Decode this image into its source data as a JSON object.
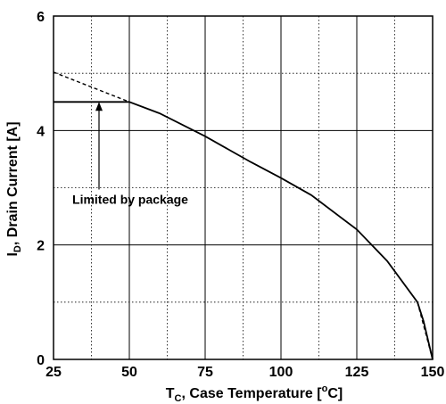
{
  "chart_data": {
    "type": "line",
    "xlabel": {
      "main": "T",
      "sub": "C",
      "rest": ", Case Temperature [",
      "sup": "o",
      "end": "C]"
    },
    "ylabel": {
      "main": "I",
      "sub": "D",
      "rest": ", Drain Current [A]"
    },
    "xlim": [
      25,
      150
    ],
    "ylim": [
      0,
      6
    ],
    "x_ticks": [
      25,
      50,
      75,
      100,
      125,
      150
    ],
    "y_ticks": [
      0,
      2,
      4,
      6
    ],
    "grid": "dotted",
    "annotation": {
      "text": "Limited by package",
      "x": 40,
      "y": 2.72,
      "arrow_to": [
        40,
        4.5
      ]
    },
    "series": [
      {
        "style": "solid",
        "points": [
          [
            25,
            4.5
          ],
          [
            50,
            4.5
          ],
          [
            60,
            4.3
          ],
          [
            75,
            3.9
          ],
          [
            90,
            3.45
          ],
          [
            100,
            3.17
          ],
          [
            110,
            2.87
          ],
          [
            125,
            2.27
          ],
          [
            135,
            1.72
          ],
          [
            145,
            1.0
          ],
          [
            147,
            0.67
          ],
          [
            150,
            0.0
          ]
        ]
      },
      {
        "style": "dashed",
        "points": [
          [
            25,
            5.02
          ],
          [
            50,
            4.5
          ]
        ]
      },
      {
        "style": "dashed",
        "points": [
          [
            145,
            1.0
          ],
          [
            150,
            0.0
          ]
        ]
      }
    ]
  }
}
